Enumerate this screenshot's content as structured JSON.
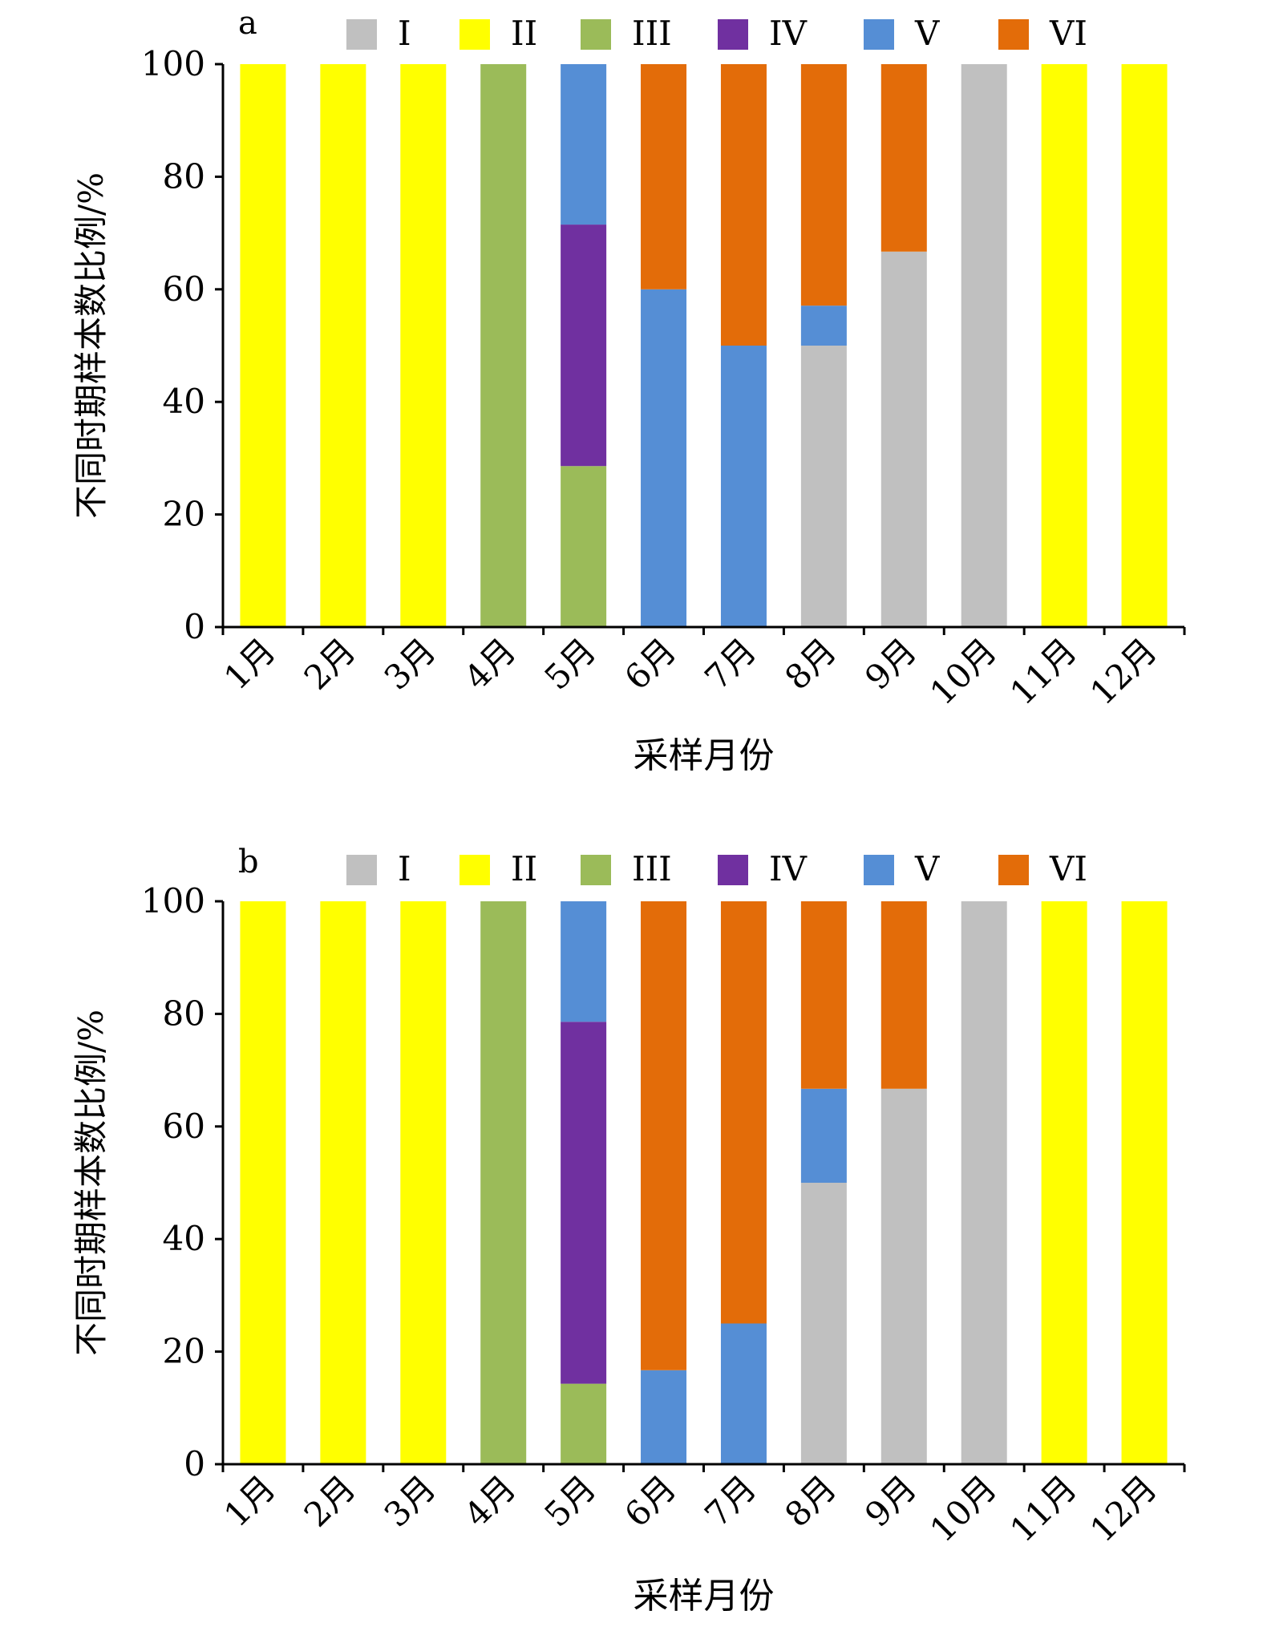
{
  "chart_data": [
    {
      "type": "bar",
      "stacked": true,
      "panel_label": "a",
      "categories": [
        "1月",
        "2月",
        "3月",
        "4月",
        "5月",
        "6月",
        "7月",
        "8月",
        "9月",
        "10月",
        "11月",
        "12月"
      ],
      "series": [
        {
          "name": "I",
          "color": "#C0C0C0",
          "values": [
            0,
            0,
            0,
            0,
            0,
            0,
            0,
            50,
            66.7,
            100,
            0,
            0
          ]
        },
        {
          "name": "II",
          "color": "#FFFF00",
          "values": [
            100,
            100,
            100,
            0,
            0,
            0,
            0,
            0,
            0,
            0,
            100,
            100
          ]
        },
        {
          "name": "III",
          "color": "#9BBB59",
          "values": [
            0,
            0,
            0,
            100,
            28.6,
            0,
            0,
            0,
            0,
            0,
            0,
            0
          ]
        },
        {
          "name": "IV",
          "color": "#7030A0",
          "values": [
            0,
            0,
            0,
            0,
            42.9,
            0,
            0,
            0,
            0,
            0,
            0,
            0
          ]
        },
        {
          "name": "V",
          "color": "#558ED5",
          "values": [
            0,
            0,
            0,
            0,
            28.5,
            60,
            50,
            7.1,
            0,
            0,
            0,
            0
          ]
        },
        {
          "name": "VI",
          "color": "#E36C09",
          "values": [
            0,
            0,
            0,
            0,
            0,
            40,
            50,
            42.9,
            33.3,
            0,
            0,
            0
          ]
        }
      ],
      "ylim": [
        0,
        100
      ],
      "yticks": [
        0,
        20,
        40,
        60,
        80,
        100
      ],
      "xlabel": "采样月份",
      "ylabel": "不同时期样本数比例/%",
      "legend_position": "top"
    },
    {
      "type": "bar",
      "stacked": true,
      "panel_label": "b",
      "categories": [
        "1月",
        "2月",
        "3月",
        "4月",
        "5月",
        "6月",
        "7月",
        "8月",
        "9月",
        "10月",
        "11月",
        "12月"
      ],
      "series": [
        {
          "name": "I",
          "color": "#C0C0C0",
          "values": [
            0,
            0,
            0,
            0,
            0,
            0,
            0,
            50,
            66.7,
            100,
            0,
            0
          ]
        },
        {
          "name": "II",
          "color": "#FFFF00",
          "values": [
            100,
            100,
            100,
            0,
            0,
            0,
            0,
            0,
            0,
            0,
            100,
            100
          ]
        },
        {
          "name": "III",
          "color": "#9BBB59",
          "values": [
            0,
            0,
            0,
            100,
            14.3,
            0,
            0,
            0,
            0,
            0,
            0,
            0
          ]
        },
        {
          "name": "IV",
          "color": "#7030A0",
          "values": [
            0,
            0,
            0,
            0,
            64.3,
            0,
            0,
            0,
            0,
            0,
            0,
            0
          ]
        },
        {
          "name": "V",
          "color": "#558ED5",
          "values": [
            0,
            0,
            0,
            0,
            21.4,
            16.7,
            25,
            16.7,
            0,
            0,
            0,
            0
          ]
        },
        {
          "name": "VI",
          "color": "#E36C09",
          "values": [
            0,
            0,
            0,
            0,
            0,
            83.3,
            75,
            33.3,
            33.3,
            0,
            0,
            0
          ]
        }
      ],
      "ylim": [
        0,
        100
      ],
      "yticks": [
        0,
        20,
        40,
        60,
        80,
        100
      ],
      "xlabel": "采样月份",
      "ylabel": "不同时期样本数比例/%",
      "legend_position": "top"
    }
  ]
}
